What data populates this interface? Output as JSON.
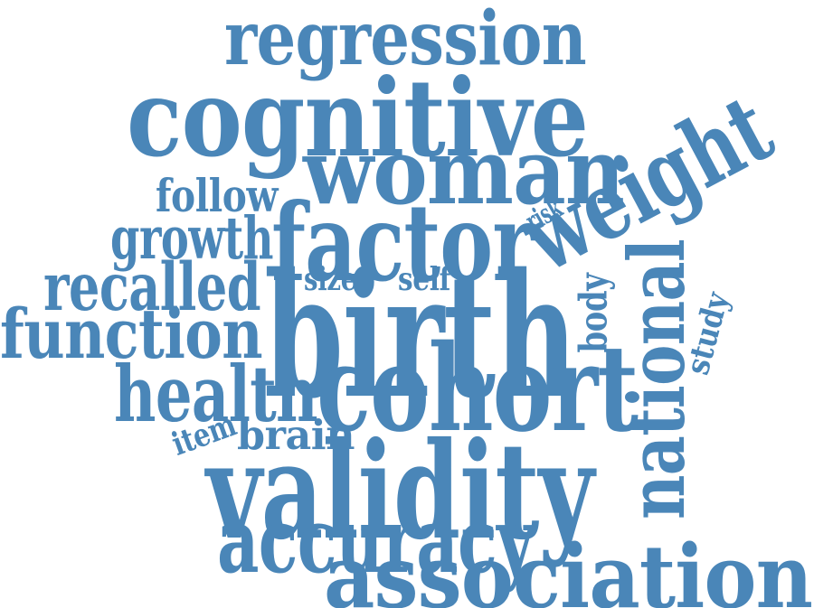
{
  "title": "Word cloud",
  "color": "#4a86b8",
  "background": "#ffffff",
  "words": [
    {
      "text": "regression",
      "weight": 3
    },
    {
      "text": "cognitive",
      "weight": 5
    },
    {
      "text": "woman",
      "weight": 4
    },
    {
      "text": "follow",
      "weight": 2
    },
    {
      "text": "factor",
      "weight": 4
    },
    {
      "text": "risk",
      "weight": 1
    },
    {
      "text": "weight",
      "weight": 4
    },
    {
      "text": "growth",
      "weight": 2
    },
    {
      "text": "recalled",
      "weight": 3
    },
    {
      "text": "size",
      "weight": 1
    },
    {
      "text": "self",
      "weight": 1
    },
    {
      "text": "body",
      "weight": 1
    },
    {
      "text": "function",
      "weight": 3
    },
    {
      "text": "birth",
      "weight": 6
    },
    {
      "text": "national",
      "weight": 3
    },
    {
      "text": "study",
      "weight": 1
    },
    {
      "text": "health",
      "weight": 3
    },
    {
      "text": "cohort",
      "weight": 5
    },
    {
      "text": "item",
      "weight": 1
    },
    {
      "text": "brain",
      "weight": 1
    },
    {
      "text": "validity",
      "weight": 5
    },
    {
      "text": "accuracy",
      "weight": 3
    },
    {
      "text": "association",
      "weight": 4
    }
  ]
}
